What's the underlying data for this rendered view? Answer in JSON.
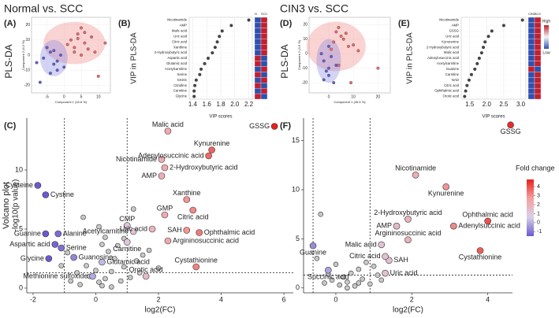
{
  "chart_data": [
    {
      "type": "scatter",
      "title": "Normal vs. SCC",
      "panel": "(A)",
      "ylabel_outer": "PLS-DA",
      "xlabel": "Component 1 (16.6 %)",
      "ylabel": "Component 2 (6.3 %)",
      "xlim": [
        -9.5,
        13.5
      ],
      "xticks": [
        -5,
        0,
        5,
        10
      ],
      "ylim": [
        -25,
        25
      ],
      "yticks": [
        -20,
        -10,
        0,
        10,
        20
      ],
      "ellipses": [
        {
          "color": "#f08080",
          "cx": 3,
          "cy": 8,
          "rx": 9,
          "ry": 14
        },
        {
          "color": "#8080e0",
          "cx": -3,
          "cy": -2,
          "rx": 4,
          "ry": 12
        }
      ],
      "series": [
        {
          "color": "#e8696b",
          "x": [
            2,
            4,
            6,
            8,
            3,
            5,
            7,
            1,
            9,
            4,
            6,
            12,
            10,
            3,
            5
          ],
          "y": [
            10,
            14,
            8,
            12,
            5,
            18,
            4,
            7,
            2,
            11,
            15,
            8,
            -14,
            2,
            0
          ]
        },
        {
          "color": "#6060d0",
          "x": [
            -6,
            -4,
            -3,
            -5,
            -2,
            -4,
            -1,
            -7,
            -3,
            -2,
            0,
            -8
          ],
          "y": [
            -2,
            2,
            -6,
            5,
            -10,
            -12,
            0,
            -18,
            3,
            -4,
            -8,
            -5
          ]
        }
      ]
    },
    {
      "type": "dot",
      "panel": "(B)",
      "ylabel": "VIP in PLS-DA",
      "xlabel": "VIP scores",
      "categories": [
        "Nicotinamide",
        "AMP",
        "Malic acid",
        "Uric acid",
        "Citric acid",
        "Xanthine",
        "2-Hydroxybutyric acid",
        "Aspartic acid",
        "Glutamic acid",
        "Acetylcarnitine",
        "Serine",
        "GSSG",
        "Citrulline",
        "Carnitine",
        "Glycine"
      ],
      "values": [
        2.2,
        1.95,
        1.82,
        1.78,
        1.75,
        1.72,
        1.68,
        1.62,
        1.57,
        1.52,
        1.5,
        1.45,
        1.43,
        1.42,
        1.42
      ],
      "xlim": [
        1.35,
        2.25
      ],
      "xticks": [
        1.4,
        1.6,
        1.8,
        {
          "value": 2,
          "label": "2.0"
        },
        2.2
      ],
      "color": "#444444",
      "heatmap": {
        "columns": [
          "N",
          "SCC"
        ],
        "colors": [
          [
            "#3050b0",
            "#c02030"
          ],
          [
            "#3050b0",
            "#c02030"
          ],
          [
            "#3050b0",
            "#c02030"
          ],
          [
            "#3050b0",
            "#c02030"
          ],
          [
            "#3050b0",
            "#c02030"
          ],
          [
            "#3050b0",
            "#c02030"
          ],
          [
            "#3050b0",
            "#c02030"
          ],
          [
            "#c02030",
            "#3050b0"
          ],
          [
            "#c02030",
            "#3050b0"
          ],
          [
            "#3050b0",
            "#c02030"
          ],
          [
            "#c02030",
            "#3050b0"
          ],
          [
            "#3050b0",
            "#c02030"
          ],
          [
            "#c02030",
            "#3050b0"
          ],
          [
            "#3050b0",
            "#c02030"
          ],
          [
            "#c02030",
            "#3050b0"
          ]
        ]
      }
    },
    {
      "type": "scatter",
      "title": "CIN3 vs. SCC",
      "panel": "(D)",
      "ylabel_outer": "PLS-DA",
      "xlabel": "Component 1 (26.6 %)",
      "ylabel": "Component 2 (3.6 %)",
      "xlim": [
        -8,
        25
      ],
      "xticks": [
        0,
        10,
        20
      ],
      "ylim": [
        -27,
        25
      ],
      "yticks": [
        -20,
        -10,
        0,
        10,
        20
      ],
      "ellipses": [
        {
          "color": "#f08080",
          "cx": 3,
          "cy": 5,
          "rx": 12,
          "ry": 17
        },
        {
          "color": "#8080e0",
          "cx": 0,
          "cy": -5,
          "rx": 5,
          "ry": 15
        }
      ],
      "series": [
        {
          "color": "#e8696b",
          "x": [
            2,
            5,
            8,
            3,
            6,
            10,
            1,
            4,
            7,
            12,
            20,
            9,
            4
          ],
          "y": [
            8,
            12,
            5,
            15,
            10,
            6,
            3,
            18,
            14,
            2,
            -10,
            -20,
            -8
          ]
        },
        {
          "color": "#6060d0",
          "x": [
            -2,
            0,
            1,
            -3,
            0,
            2,
            -1,
            3,
            0,
            -2
          ],
          "y": [
            -5,
            -10,
            -2,
            0,
            -15,
            -20,
            -12,
            -8,
            5,
            -18
          ]
        }
      ]
    },
    {
      "type": "dot",
      "panel": "(E)",
      "ylabel": "VIP in PLS-DA",
      "xlabel": "VIP scores",
      "categories": [
        "Nicotinamide",
        "AMP",
        "GSSG",
        "Uric acid",
        "Kynurenine",
        "2-Hydroxybutyric acid",
        "Malic acid",
        "Adenylosuccinic acid",
        "Acetylcarnitine",
        "Guanine",
        "Carnitine",
        "NAD",
        "Citric acid",
        "Ophthalmic acid",
        "Orotic acid"
      ],
      "values": [
        3.05,
        2.5,
        2.15,
        2.05,
        1.95,
        1.9,
        1.85,
        1.78,
        1.72,
        1.65,
        1.55,
        1.48,
        1.42,
        1.38,
        1.35
      ],
      "xlim": [
        1.25,
        3.15
      ],
      "xticks": [
        1.5,
        {
          "value": 2,
          "label": "2.0"
        },
        2.5,
        {
          "value": 3,
          "label": "3.0"
        }
      ],
      "color": "#444444",
      "heatmap": {
        "columns": [
          "CIN3",
          "SCC"
        ],
        "colors": [
          [
            "#3050b0",
            "#c02030"
          ],
          [
            "#3050b0",
            "#c02030"
          ],
          [
            "#3050b0",
            "#c02030"
          ],
          [
            "#3050b0",
            "#c02030"
          ],
          [
            "#3050b0",
            "#c02030"
          ],
          [
            "#3050b0",
            "#c02030"
          ],
          [
            "#3050b0",
            "#c02030"
          ],
          [
            "#3050b0",
            "#c02030"
          ],
          [
            "#3050b0",
            "#c02030"
          ],
          [
            "#c02030",
            "#3050b0"
          ],
          [
            "#3050b0",
            "#c02030"
          ],
          [
            "#3050b0",
            "#c02030"
          ],
          [
            "#3050b0",
            "#c02030"
          ],
          [
            "#3050b0",
            "#c02030"
          ],
          [
            "#3050b0",
            "#c02030"
          ]
        ]
      },
      "color_legend": {
        "high": "High",
        "low": "Low",
        "colors": [
          "#c02030",
          "#f4f4f4",
          "#3050b0"
        ]
      }
    },
    {
      "type": "volcano",
      "panel": "(C)",
      "ylabel": "Volcano plot",
      "ylabel2": "-log10(p value)",
      "xlabel": "log2(FC)",
      "xlim": [
        -2.2,
        6.3
      ],
      "xticks": [
        -2,
        0,
        2,
        4,
        6
      ],
      "ylim": [
        -0.4,
        14.4
      ],
      "yticks": [
        0,
        5,
        10
      ],
      "thresholds": {
        "x": [
          -1,
          1
        ],
        "y": 1.3
      },
      "points": {
        "x": [
          5.7,
          2.3,
          3.7,
          3.6,
          2.1,
          2.2,
          2.1,
          2.9,
          3.1,
          2.2,
          1.0,
          2.9,
          1.8,
          3.3,
          1.2,
          2.3,
          1.0,
          3.2,
          1.6,
          -1.85,
          -1.6,
          -1.6,
          -1.2,
          -1.3,
          -1.1,
          -1.5,
          -0.7,
          0.2,
          -0.1,
          0.1,
          0.3,
          -0.2,
          0.5,
          0.8,
          -0.5,
          0.2,
          1.1,
          0.6,
          0.4,
          -0.3,
          0.9,
          1.3,
          -0.8,
          0.0,
          0.7,
          1.5,
          -0.6,
          0.3,
          -0.4,
          1.7,
          -0.9,
          0.1,
          1.2,
          0.5,
          1.4,
          2.0,
          -1.1,
          0.9,
          0.2
        ],
        "y": [
          13.7,
          13.3,
          11.7,
          11.2,
          10.9,
          10.2,
          9.5,
          7.5,
          6.6,
          6.2,
          5.3,
          4.9,
          5.0,
          4.7,
          4.8,
          4.0,
          3.9,
          1.8,
          1.0,
          8.7,
          7.9,
          4.6,
          4.6,
          3.7,
          3.4,
          2.5,
          2.6,
          2.2,
          1.0,
          0.5,
          0.8,
          1.0,
          1.4,
          0.6,
          0.3,
          0.2,
          0.9,
          2.5,
          3.1,
          1.9,
          1.8,
          2.3,
          0.6,
          1.5,
          3.6,
          2.8,
          1.3,
          4.3,
          6.0,
          3.2,
          3.0,
          5.2,
          6.7,
          0.1,
          1.3,
          1.7,
          1.9,
          4.2,
          3.7
        ],
        "labels": [
          "GSSG",
          "Malic acid",
          "Kynurenine",
          "Adenylosuccinic acid",
          "Nicotinamide",
          "2-Hydroxybutyric acid",
          "AMP",
          "Xanthine",
          "Citric acid",
          "GMP",
          "CMP",
          "SAH",
          "Uric acid",
          "Ophthalmic acid",
          "Acetylcarnitine",
          "Argininosuccinic acid",
          "Carnitine",
          "Cystathionine",
          "Orotic acid",
          "Cysteine",
          "Cystine",
          "Guanine",
          "Alanine",
          "Aspartic acid",
          "Serine",
          "Glycine",
          "Guanosine",
          "Glutamic acid",
          "Methionine sulfoxide",
          null,
          null,
          null,
          null,
          null,
          null,
          null,
          null,
          null,
          null,
          null,
          null,
          null,
          null,
          null,
          null,
          null,
          null,
          null,
          null,
          null,
          null,
          null,
          null,
          null,
          null,
          null,
          null,
          null,
          null
        ],
        "label_pos": [
          "left",
          "above",
          "above",
          "left",
          "left",
          "right",
          "left",
          "above",
          "below",
          "above",
          "above",
          "left",
          "left",
          "right",
          "left",
          "right",
          "below",
          "above",
          "above",
          "left",
          "right",
          "left",
          "right",
          "left",
          "right",
          "left",
          "right",
          "right",
          "left",
          null,
          null,
          null,
          null,
          null,
          null,
          null,
          null,
          null,
          null,
          null,
          null,
          null,
          null,
          null,
          null,
          null,
          null,
          null,
          null,
          null,
          null,
          null,
          null,
          null,
          null,
          null,
          null,
          null,
          null
        ]
      }
    },
    {
      "type": "volcano",
      "panel": "(F)",
      "ylabel": null,
      "xlabel": "log2(FC)",
      "xlim": [
        -0.85,
        4.65
      ],
      "xticks": [
        0,
        2,
        4
      ],
      "ylim": [
        -0.5,
        17.3
      ],
      "yticks": [
        0,
        5,
        10,
        15
      ],
      "thresholds": {
        "x": [
          -0.6,
          0.9
        ],
        "y": 1.3
      },
      "points": {
        "x": [
          4.6,
          2.1,
          2.9,
          1.9,
          1.6,
          4.0,
          3.1,
          1.9,
          1.2,
          1.3,
          1.4,
          3.8,
          1.3,
          -0.6,
          -0.2,
          0.1,
          0.3,
          -0.1,
          0.5,
          0.2,
          0.7,
          0.9,
          -0.3,
          0.4,
          1.1,
          0.6,
          0.0,
          -0.4,
          -0.5,
          0.8,
          0.3,
          1.0,
          -0.2,
          0.6,
          1.2
        ],
        "y": [
          16.6,
          11.5,
          10.3,
          7.0,
          6.3,
          6.8,
          6.3,
          4.9,
          4.4,
          3.2,
          2.8,
          3.8,
          1.5,
          4.3,
          1.8,
          0.3,
          0.6,
          0.8,
          0.2,
          1.1,
          0.9,
          0.4,
          0.5,
          1.5,
          1.3,
          1.9,
          2.4,
          7.5,
          3.0,
          2.6,
          0.0,
          2.2,
          1.4,
          0.5,
          0.8
        ],
        "labels": [
          "GSSG",
          "Nicotinamide",
          "Kynurenine",
          "2-Hydroxybutyric acid",
          "AMP",
          "Ophthalmic acid",
          "Adenylsuccinic acid",
          "Argininosuccinic acid",
          "Malic acid",
          "Citric acid",
          "SAH",
          "Cystathionine",
          "Uric acid",
          "Guanine",
          "Succinic acid",
          null,
          null,
          null,
          null,
          null,
          null,
          null,
          null,
          null,
          null,
          null,
          null,
          null,
          null,
          null,
          null,
          null,
          null,
          null,
          null
        ],
        "label_pos": [
          "below",
          "above",
          "below",
          "above",
          "left",
          "above",
          "right",
          "above",
          "left",
          "left",
          "right",
          "below",
          "right",
          "below",
          "below",
          null,
          null,
          null,
          null,
          null,
          null,
          null,
          null,
          null,
          null,
          null,
          null,
          null,
          null,
          null,
          null,
          null,
          null,
          null,
          null
        ]
      },
      "colorbar": {
        "title": "Fold change",
        "lim": [
          -1.5,
          4.8
        ],
        "ticks": [
          -1,
          0,
          1,
          2,
          3,
          4
        ],
        "colors": [
          "#6a5acd",
          "#d8d0e8",
          "#f5a0a0",
          "#e8201c"
        ]
      }
    }
  ]
}
